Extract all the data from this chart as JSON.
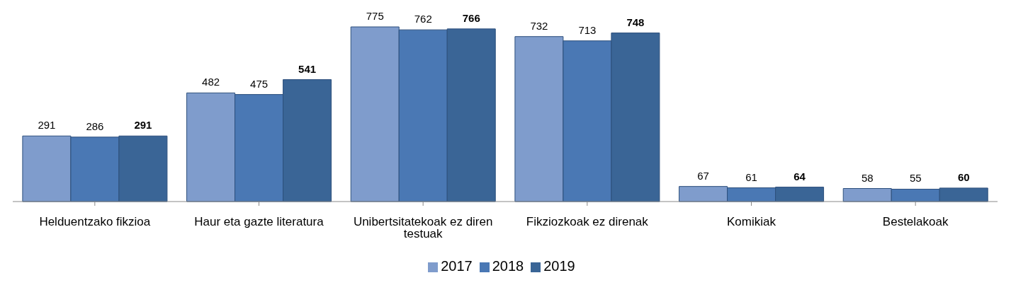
{
  "chart_data": {
    "type": "bar",
    "categories": [
      "Helduentzako fikzioa",
      "Haur eta gazte literatura",
      "Unibertsitatekoak ez diren testuak",
      "Fikziozkoak ez direnak",
      "Komikiak",
      "Bestelakoak"
    ],
    "series": [
      {
        "name": "2017",
        "color": "#7f9ccc",
        "values": [
          291,
          482,
          775,
          732,
          67,
          58
        ]
      },
      {
        "name": "2018",
        "color": "#4a78b4",
        "values": [
          286,
          475,
          762,
          713,
          61,
          55
        ]
      },
      {
        "name": "2019",
        "color": "#3a6596",
        "values": [
          291,
          541,
          766,
          748,
          64,
          60
        ]
      }
    ],
    "data_labels": true,
    "legend": "bottom",
    "grid": false
  }
}
